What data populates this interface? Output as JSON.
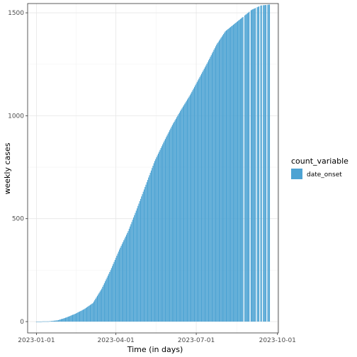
{
  "chart_data": {
    "type": "bar",
    "title": "",
    "xlabel": "Time (in days)",
    "ylabel": "weekly cases",
    "x_start": "2023-01-01",
    "x_end": "2023-09-22",
    "xlim": [
      "2022-12-22",
      "2023-10-02"
    ],
    "ylim": [
      -55,
      1545
    ],
    "x_ticks": [
      {
        "date": "2023-01-01",
        "label": "2023-01-01"
      },
      {
        "date": "2023-04-01",
        "label": "2023-04-01"
      },
      {
        "date": "2023-07-01",
        "label": "2023-07-01"
      },
      {
        "date": "2023-10-01",
        "label": "2023-10-01"
      }
    ],
    "y_ticks": [
      0,
      500,
      1000,
      1500
    ],
    "grid": true,
    "legend": {
      "title": "count_variable",
      "position": "right",
      "entries": [
        {
          "label": "date_onset",
          "color": "#4da3d3"
        }
      ]
    },
    "series": [
      {
        "name": "date_onset",
        "color": "#4da3d3",
        "curve": [
          [
            "2023-01-01",
            0
          ],
          [
            "2023-01-15",
            1
          ],
          [
            "2023-01-25",
            6
          ],
          [
            "2023-02-04",
            20
          ],
          [
            "2023-02-14",
            38
          ],
          [
            "2023-02-24",
            60
          ],
          [
            "2023-03-06",
            90
          ],
          [
            "2023-03-16",
            160
          ],
          [
            "2023-03-26",
            250
          ],
          [
            "2023-04-05",
            350
          ],
          [
            "2023-04-15",
            440
          ],
          [
            "2023-04-25",
            550
          ],
          [
            "2023-05-05",
            665
          ],
          [
            "2023-05-15",
            780
          ],
          [
            "2023-05-25",
            870
          ],
          [
            "2023-06-04",
            955
          ],
          [
            "2023-06-14",
            1030
          ],
          [
            "2023-06-24",
            1100
          ],
          [
            "2023-07-04",
            1180
          ],
          [
            "2023-07-14",
            1260
          ],
          [
            "2023-07-24",
            1345
          ],
          [
            "2023-08-03",
            1410
          ],
          [
            "2023-08-13",
            1445
          ],
          [
            "2023-08-23",
            1480
          ],
          [
            "2023-09-02",
            1515
          ],
          [
            "2023-09-12",
            1535
          ],
          [
            "2023-09-22",
            1540
          ]
        ],
        "gaps": [
          "2023-08-24",
          "2023-08-31",
          "2023-09-07",
          "2023-09-11",
          "2023-09-14",
          "2023-09-19"
        ]
      }
    ]
  }
}
